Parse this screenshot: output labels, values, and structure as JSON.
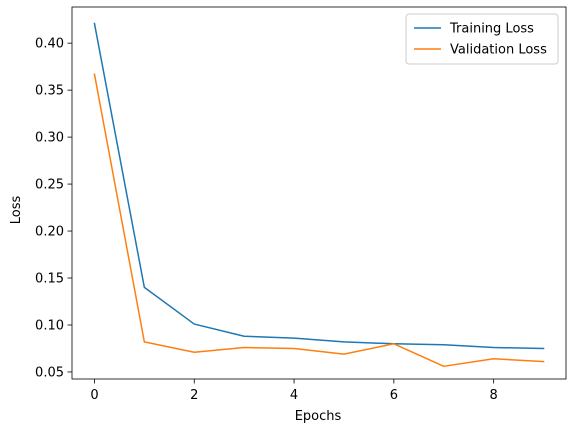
{
  "chart_data": {
    "type": "line",
    "xlabel": "Epochs",
    "ylabel": "Loss",
    "xlim": [
      -0.45,
      9.45
    ],
    "ylim": [
      0.0425,
      0.4385
    ],
    "xticks": [
      0,
      2,
      4,
      6,
      8
    ],
    "yticks": [
      0.05,
      0.1,
      0.15,
      0.2,
      0.25,
      0.3,
      0.35,
      0.4
    ],
    "ytick_labels": [
      "0.05",
      "0.10",
      "0.15",
      "0.20",
      "0.25",
      "0.30",
      "0.35",
      "0.40"
    ],
    "grid": false,
    "legend_position": "upper-right",
    "x": [
      0,
      1,
      2,
      3,
      4,
      5,
      6,
      7,
      8,
      9
    ],
    "series": [
      {
        "name": "Training Loss",
        "color": "#1f77b4",
        "values": [
          0.421,
          0.14,
          0.101,
          0.088,
          0.086,
          0.082,
          0.08,
          0.079,
          0.076,
          0.075
        ]
      },
      {
        "name": "Validation Loss",
        "color": "#ff7f0e",
        "values": [
          0.367,
          0.082,
          0.071,
          0.076,
          0.075,
          0.069,
          0.08,
          0.056,
          0.064,
          0.061
        ]
      }
    ]
  }
}
